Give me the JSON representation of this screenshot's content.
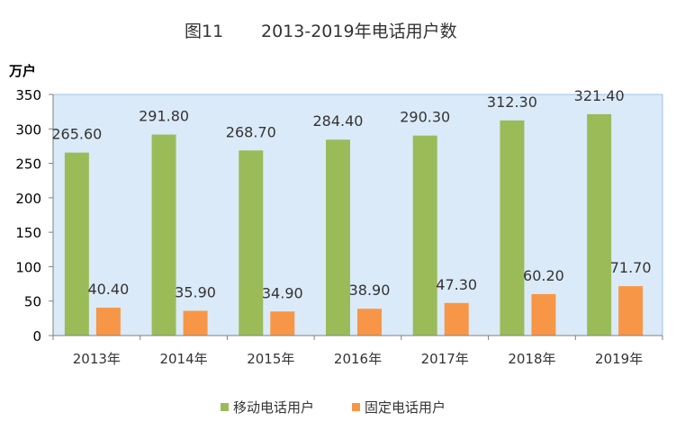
{
  "chart_data": {
    "type": "bar",
    "title_figure": "图11",
    "title": "2013-2019年电话用户数",
    "ylabel": "万户",
    "categories": [
      "2013年",
      "2014年",
      "2015年",
      "2016年",
      "2017年",
      "2018年",
      "2019年"
    ],
    "series": [
      {
        "name": "移动电话用户",
        "color": "#9bbb59",
        "values": [
          265.6,
          291.8,
          268.7,
          284.4,
          290.3,
          312.3,
          321.4
        ],
        "labels": [
          "265.60",
          "291.80",
          "268.70",
          "284.40",
          "290.30",
          "312.30",
          "321.40"
        ]
      },
      {
        "name": "固定电话用户",
        "color": "#f79646",
        "values": [
          40.4,
          35.9,
          34.9,
          38.9,
          47.3,
          60.2,
          71.7
        ],
        "labels": [
          "40.40",
          "35.90",
          "34.90",
          "38.90",
          "47.30",
          "60.20",
          "71.70"
        ]
      }
    ],
    "ylim": [
      0,
      350
    ],
    "yticks": [
      "0",
      "50",
      "100",
      "150",
      "200",
      "250",
      "300",
      "350"
    ],
    "plot_background": "#dbeaf8",
    "grid": false,
    "legend_position": "bottom"
  }
}
